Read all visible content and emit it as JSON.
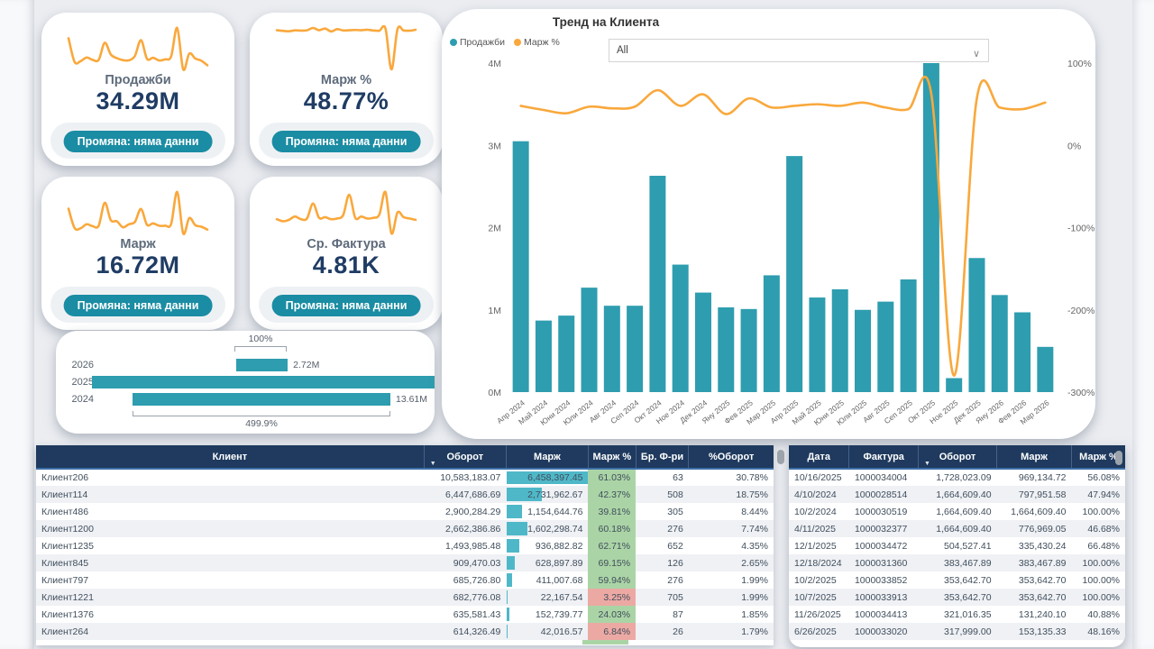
{
  "colors": {
    "teal_bar": "#2E9DAF",
    "orange_line": "#F9A83C",
    "badge_teal": "#1A8CA3",
    "header_navy": "#1F3A5E",
    "kpi_value_navy": "#1F3C64",
    "cond_green": "#ABD4A6",
    "cond_red": "#ECA9A4",
    "databar_teal": "#4FB8C8"
  },
  "kpi_cards": [
    {
      "title": "Продажби",
      "value": "34.29M",
      "badge": "Промяна: няма данни",
      "spark": [
        3.05,
        0.87,
        0.93,
        1.27,
        1.05,
        1.05,
        2.63,
        1.55,
        1.21,
        1.03,
        1.01,
        1.42,
        2.87,
        1.15,
        1.25,
        1.0,
        1.1,
        1.37,
        4.0,
        0.17,
        1.63,
        1.18,
        0.97,
        0.55
      ]
    },
    {
      "title": "Марж %",
      "value": "48.77%",
      "badge": "Промяна: няма данни",
      "spark": [
        48,
        43,
        39,
        47,
        45,
        47,
        67,
        48,
        62,
        38,
        57,
        46,
        48,
        50,
        48,
        52,
        46,
        44,
        63,
        -280,
        57,
        46,
        44,
        52
      ]
    },
    {
      "title": "Марж",
      "value": "16.72M",
      "badge": "Промяна: няма данни",
      "spark": [
        1.46,
        0.37,
        0.35,
        0.58,
        0.47,
        0.5,
        1.79,
        0.81,
        0.75,
        0.41,
        0.58,
        0.71,
        1.44,
        0.55,
        0.63,
        0.5,
        0.5,
        0.6,
        2.4,
        0.06,
        0.93,
        0.53,
        0.44,
        0.28
      ]
    },
    {
      "title": "Ср. Фактура",
      "value": "4.81K",
      "badge": "Промяна: няма данни",
      "spark": [
        4.2,
        3.9,
        4.1,
        4.6,
        4.2,
        4.3,
        6.5,
        4.4,
        4.5,
        4.2,
        4.3,
        4.8,
        7.8,
        4.4,
        4.6,
        4.3,
        4.4,
        4.9,
        8.2,
        2.1,
        5.2,
        4.5,
        4.3,
        4.1
      ]
    }
  ],
  "chart_data": [
    {
      "type": "combo-bar-line",
      "title": "Тренд на Клиента",
      "filter": {
        "label": "All"
      },
      "legend": [
        {
          "label": "Продажби",
          "color": "#2E9DAF"
        },
        {
          "label": "Марж %",
          "color": "#F9A83C"
        }
      ],
      "categories": [
        "Апр 2024",
        "Май 2024",
        "Юни 2024",
        "Юли 2024",
        "Авг 2024",
        "Сеп 2024",
        "Окт 2024",
        "Ное 2024",
        "Дек 2024",
        "Яну 2025",
        "Фев 2025",
        "Мар 2025",
        "Апр 2025",
        "Май 2025",
        "Юни 2025",
        "Юли 2025",
        "Авг 2025",
        "Сеп 2025",
        "Окт 2025",
        "Ное 2025",
        "Дек 2025",
        "Яну 2026",
        "Фев 2026",
        "Мар 2026"
      ],
      "series": [
        {
          "name": "Продажби",
          "type": "bar",
          "axis": "left",
          "values": [
            3.05,
            0.87,
            0.93,
            1.27,
            1.05,
            1.05,
            2.63,
            1.55,
            1.21,
            1.03,
            1.01,
            1.42,
            2.87,
            1.15,
            1.25,
            1.0,
            1.1,
            1.37,
            4.0,
            0.17,
            1.63,
            1.18,
            0.97,
            0.55
          ]
        },
        {
          "name": "Марж %",
          "type": "line",
          "axis": "right",
          "values": [
            48,
            43,
            39,
            47,
            45,
            47,
            67,
            48,
            62,
            38,
            57,
            46,
            48,
            50,
            48,
            52,
            46,
            44,
            63,
            -280,
            57,
            46,
            44,
            52
          ]
        }
      ],
      "left_axis": {
        "min": 0,
        "max": 4,
        "unit": "M",
        "ticks": [
          "4M",
          "3M",
          "2M",
          "1M",
          "0M"
        ]
      },
      "right_axis": {
        "min": -300,
        "max": 100,
        "unit": "%",
        "ticks": [
          "100%",
          "0%",
          "-100%",
          "-200%",
          "-300%"
        ]
      },
      "grid": false,
      "legend_position": "top-left"
    },
    {
      "type": "bar",
      "orientation": "horizontal",
      "categories": [
        "2026",
        "2025",
        "2024"
      ],
      "values": [
        2.72,
        18.4,
        13.61
      ],
      "bar_labels": [
        "2.72M",
        "",
        "13.61M"
      ],
      "annotations": [
        {
          "text": "100%",
          "target": "2026",
          "position": "top"
        },
        {
          "text": "499.9%",
          "target": "2024",
          "position": "bottom"
        }
      ],
      "color": "#2E9DAF"
    }
  ],
  "left_table": {
    "columns": [
      "Клиент",
      "Оборот",
      "Марж",
      "Марж %",
      "Бр. Ф-ри",
      "%Оборот"
    ],
    "sort_column": "Оборот",
    "rows": [
      {
        "c": [
          "Клиент206",
          "10,583,183.07",
          "6,458,397.45",
          "61.03%",
          "63",
          "30.78%"
        ],
        "pct": "green"
      },
      {
        "c": [
          "Клиент114",
          "6,447,686.69",
          "2,731,962.67",
          "42.37%",
          "508",
          "18.75%"
        ],
        "pct": "green"
      },
      {
        "c": [
          "Клиент486",
          "2,900,284.29",
          "1,154,644.76",
          "39.81%",
          "305",
          "8.44%"
        ],
        "pct": "green"
      },
      {
        "c": [
          "Клиент1200",
          "2,662,386.86",
          "1,602,298.74",
          "60.18%",
          "276",
          "7.74%"
        ],
        "pct": "green"
      },
      {
        "c": [
          "Клиент1235",
          "1,493,985.48",
          "936,882.82",
          "62.71%",
          "652",
          "4.35%"
        ],
        "pct": "green"
      },
      {
        "c": [
          "Клиент845",
          "909,470.03",
          "628,897.89",
          "69.15%",
          "126",
          "2.65%"
        ],
        "pct": "green"
      },
      {
        "c": [
          "Клиент797",
          "685,726.80",
          "411,007.68",
          "59.94%",
          "276",
          "1.99%"
        ],
        "pct": "green"
      },
      {
        "c": [
          "Клиент1221",
          "682,776.08",
          "22,167.54",
          "3.25%",
          "705",
          "1.99%"
        ],
        "pct": "red"
      },
      {
        "c": [
          "Клиент1376",
          "635,581.43",
          "152,739.77",
          "24.03%",
          "87",
          "1.85%"
        ],
        "pct": "green"
      },
      {
        "c": [
          "Клиент264",
          "614,326.49",
          "42,016.57",
          "6.84%",
          "26",
          "1.79%"
        ],
        "pct": "red"
      }
    ]
  },
  "right_table": {
    "columns": [
      "Дата",
      "Фактура",
      "Оборот",
      "Марж",
      "Марж %"
    ],
    "sort_column": "Оборот",
    "rows": [
      [
        "10/16/2025",
        "1000034004",
        "1,728,023.09",
        "969,134.72",
        "56.08%"
      ],
      [
        "4/10/2024",
        "1000028514",
        "1,664,609.40",
        "797,951.58",
        "47.94%"
      ],
      [
        "10/2/2024",
        "1000030519",
        "1,664,609.40",
        "1,664,609.40",
        "100.00%"
      ],
      [
        "4/11/2025",
        "1000032377",
        "1,664,609.40",
        "776,969.05",
        "46.68%"
      ],
      [
        "12/1/2025",
        "1000034472",
        "504,527.41",
        "335,430.24",
        "66.48%"
      ],
      [
        "12/18/2024",
        "1000031360",
        "383,467.89",
        "383,467.89",
        "100.00%"
      ],
      [
        "10/2/2025",
        "1000033852",
        "353,642.70",
        "353,642.70",
        "100.00%"
      ],
      [
        "10/7/2025",
        "1000033913",
        "353,642.70",
        "353,642.70",
        "100.00%"
      ],
      [
        "11/26/2025",
        "1000034413",
        "321,016.35",
        "131,240.10",
        "40.88%"
      ],
      [
        "6/26/2025",
        "1000033020",
        "317,999.00",
        "153,135.33",
        "48.16%"
      ]
    ]
  }
}
